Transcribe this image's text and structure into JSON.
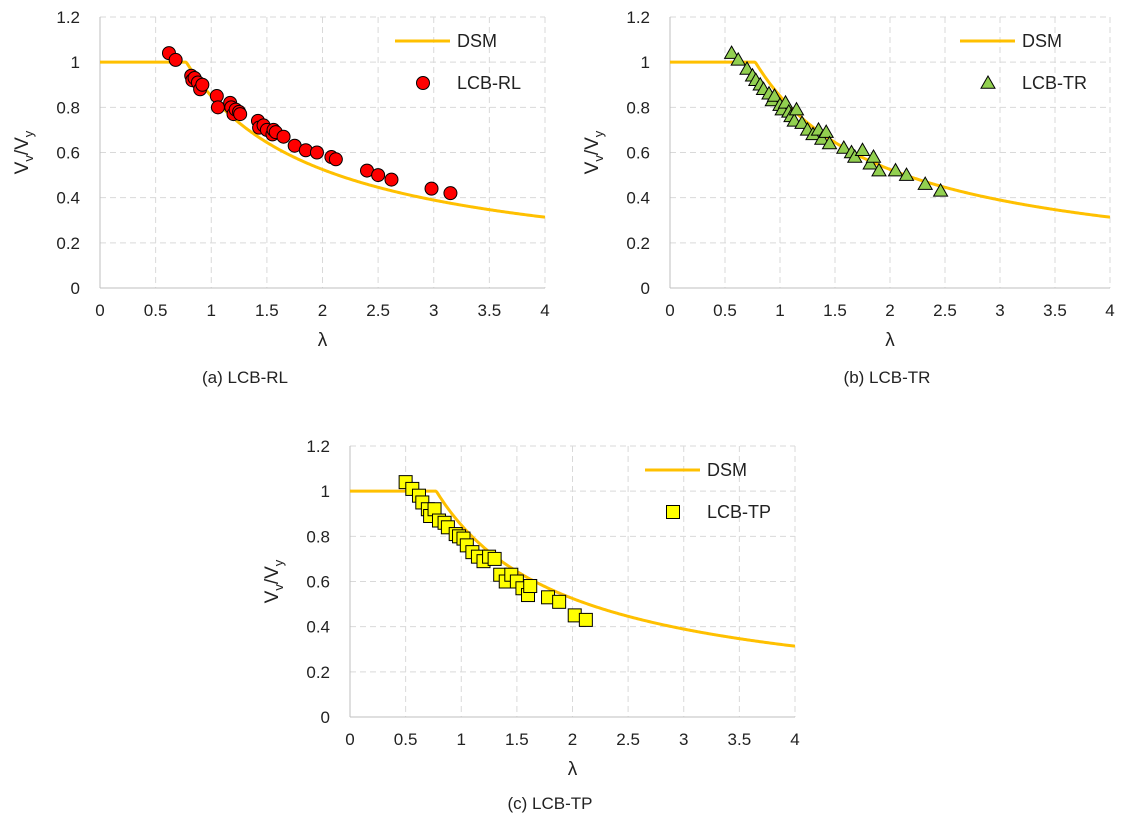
{
  "chart_data": [
    {
      "type": "scatter",
      "caption": "(a) LCB-RL",
      "xlabel": "λ",
      "ylabel_main": "V",
      "ylabel_sub1": "v",
      "ylabel_slash": "/V",
      "ylabel_sub2": "y",
      "xlim": [
        0,
        4
      ],
      "ylim": [
        0,
        1.2
      ],
      "xticks": [
        "0",
        "0.5",
        "1",
        "1.5",
        "2",
        "2.5",
        "3",
        "3.5",
        "4"
      ],
      "yticks": [
        "0",
        "0.2",
        "0.4",
        "0.6",
        "0.8",
        "1",
        "1.2"
      ],
      "grid": true,
      "legend_position": "top-right",
      "series": [
        {
          "name": "DSM",
          "kind": "line",
          "color": "#FFC000",
          "formula": "dsm"
        },
        {
          "name": "LCB-RL",
          "kind": "points",
          "marker": "circle",
          "color": "#FF0000",
          "x": [
            0.62,
            0.68,
            0.82,
            0.83,
            0.85,
            0.88,
            0.9,
            0.92,
            1.05,
            1.06,
            1.17,
            1.18,
            1.2,
            1.22,
            1.25,
            1.26,
            1.42,
            1.43,
            1.47,
            1.5,
            1.55,
            1.56,
            1.58,
            1.65,
            1.75,
            1.85,
            1.95,
            2.08,
            2.12,
            2.4,
            2.5,
            2.62,
            2.98,
            3.15
          ],
          "y": [
            1.04,
            1.01,
            0.94,
            0.92,
            0.93,
            0.91,
            0.88,
            0.9,
            0.85,
            0.8,
            0.82,
            0.8,
            0.77,
            0.79,
            0.78,
            0.77,
            0.74,
            0.71,
            0.72,
            0.7,
            0.68,
            0.7,
            0.69,
            0.67,
            0.63,
            0.61,
            0.6,
            0.58,
            0.57,
            0.52,
            0.5,
            0.48,
            0.44,
            0.42
          ]
        }
      ]
    },
    {
      "type": "scatter",
      "caption": "(b) LCB-TR",
      "xlabel": "λ",
      "ylabel_main": "V",
      "ylabel_sub1": "v",
      "ylabel_slash": "/V",
      "ylabel_sub2": "y",
      "xlim": [
        0,
        4
      ],
      "ylim": [
        0,
        1.2
      ],
      "xticks": [
        "0",
        "0.5",
        "1",
        "1.5",
        "2",
        "2.5",
        "3",
        "3.5",
        "4"
      ],
      "yticks": [
        "0",
        "0.2",
        "0.4",
        "0.6",
        "0.8",
        "1",
        "1.2"
      ],
      "grid": true,
      "legend_position": "top-right",
      "series": [
        {
          "name": "DSM",
          "kind": "line",
          "color": "#FFC000",
          "formula": "dsm"
        },
        {
          "name": "LCB-TR",
          "kind": "points",
          "marker": "triangle",
          "color": "#92D050",
          "x": [
            0.56,
            0.62,
            0.7,
            0.75,
            0.78,
            0.82,
            0.85,
            0.9,
            0.93,
            0.95,
            1.0,
            1.02,
            1.05,
            1.08,
            1.1,
            1.13,
            1.15,
            1.2,
            1.25,
            1.3,
            1.35,
            1.38,
            1.42,
            1.45,
            1.58,
            1.65,
            1.68,
            1.75,
            1.82,
            1.85,
            1.9,
            2.05,
            2.15,
            2.32,
            2.46
          ],
          "y": [
            1.04,
            1.01,
            0.97,
            0.94,
            0.92,
            0.9,
            0.88,
            0.86,
            0.83,
            0.85,
            0.81,
            0.79,
            0.82,
            0.78,
            0.76,
            0.74,
            0.79,
            0.73,
            0.7,
            0.68,
            0.7,
            0.66,
            0.69,
            0.64,
            0.62,
            0.6,
            0.58,
            0.61,
            0.55,
            0.58,
            0.52,
            0.52,
            0.5,
            0.46,
            0.43
          ]
        }
      ]
    },
    {
      "type": "scatter",
      "caption": "(c) LCB-TP",
      "xlabel": "λ",
      "ylabel_main": "V",
      "ylabel_sub1": "v",
      "ylabel_slash": "/V",
      "ylabel_sub2": "y",
      "xlim": [
        0,
        4
      ],
      "ylim": [
        0,
        1.2
      ],
      "xticks": [
        "0",
        "0.5",
        "1",
        "1.5",
        "2",
        "2.5",
        "3",
        "3.5",
        "4"
      ],
      "yticks": [
        "0",
        "0.2",
        "0.4",
        "0.6",
        "0.8",
        "1",
        "1.2"
      ],
      "grid": true,
      "legend_position": "top-right",
      "series": [
        {
          "name": "DSM",
          "kind": "line",
          "color": "#FFC000",
          "formula": "dsm"
        },
        {
          "name": "LCB-TP",
          "kind": "points",
          "marker": "square",
          "color": "#FFFF00",
          "x": [
            0.5,
            0.56,
            0.62,
            0.65,
            0.7,
            0.72,
            0.76,
            0.8,
            0.85,
            0.88,
            0.95,
            0.98,
            1.02,
            1.05,
            1.1,
            1.15,
            1.2,
            1.25,
            1.3,
            1.35,
            1.4,
            1.45,
            1.5,
            1.55,
            1.6,
            1.62,
            1.78,
            1.88,
            2.02,
            2.12
          ],
          "y": [
            1.04,
            1.01,
            0.98,
            0.95,
            0.92,
            0.89,
            0.92,
            0.87,
            0.86,
            0.84,
            0.81,
            0.8,
            0.79,
            0.76,
            0.73,
            0.71,
            0.69,
            0.71,
            0.7,
            0.63,
            0.6,
            0.63,
            0.6,
            0.57,
            0.54,
            0.58,
            0.53,
            0.51,
            0.45,
            0.43
          ]
        }
      ]
    }
  ]
}
